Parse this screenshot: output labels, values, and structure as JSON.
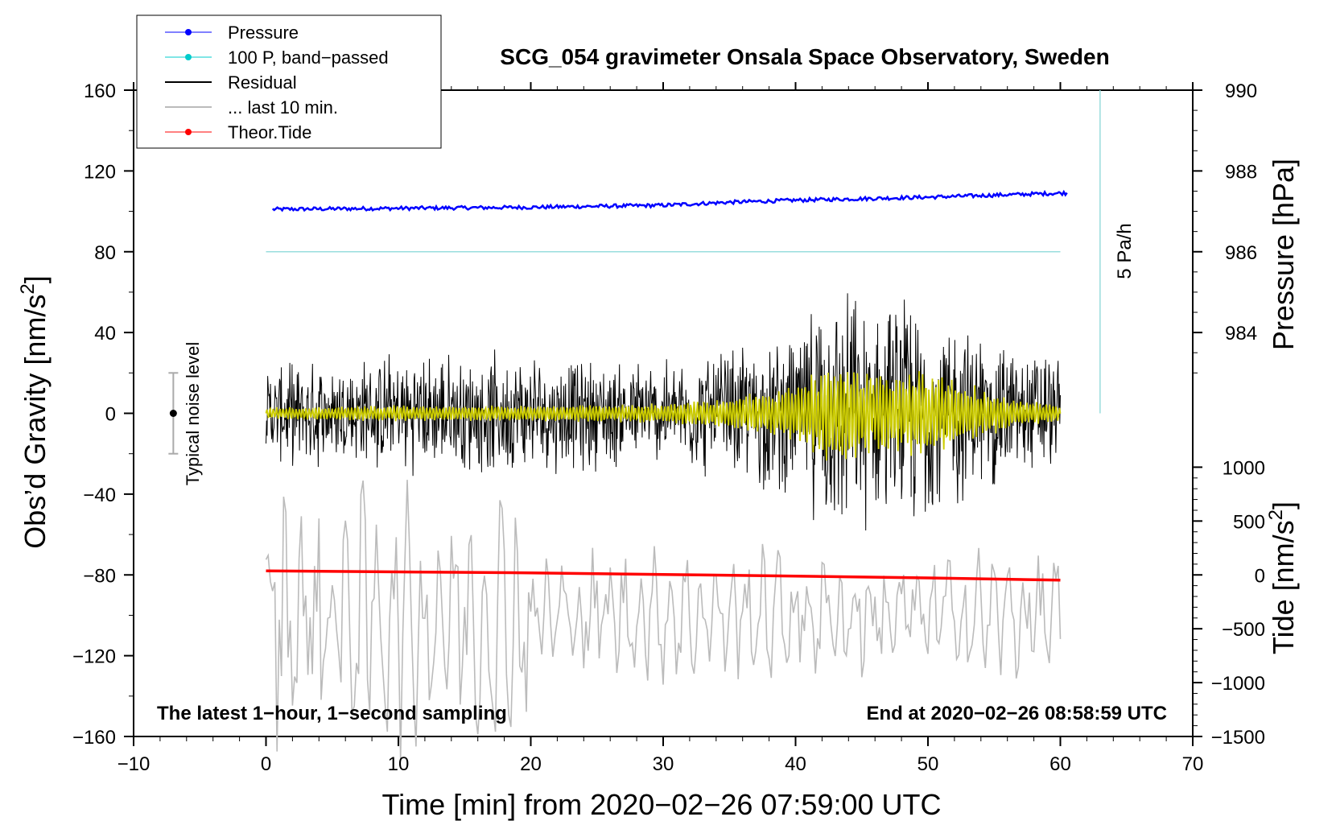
{
  "chart_data": {
    "type": "line",
    "title": "SCG_054 gravimeter Onsala Space Observatory, Sweden",
    "xlabel": "Time [min] from 2020−02−26 07:59:00 UTC",
    "ylabel": "Obs’d Gravity [nm/s",
    "ylabel_sup": "2",
    "ylabel_close": "]",
    "y2label": "Pressure [hPa]",
    "y3label": "Tide [nm/s",
    "y3label_sup": "2",
    "y3label_close": "]",
    "xlim": [
      -10,
      70
    ],
    "ylim": [
      -160,
      160
    ],
    "xticks": [
      -10,
      0,
      10,
      20,
      30,
      40,
      50,
      60,
      70
    ],
    "xtick_labels": [
      "−10",
      "0",
      "10",
      "20",
      "30",
      "40",
      "50",
      "60",
      "70"
    ],
    "yticks": [
      -160,
      -120,
      -80,
      -40,
      0,
      40,
      80,
      120,
      160
    ],
    "ytick_labels": [
      "−160",
      "−120",
      "−80",
      "−40",
      "0",
      "40",
      "80",
      "120",
      "160"
    ],
    "pressure_axis": {
      "ticks": [
        984,
        986,
        988,
        990
      ],
      "labels": [
        "984",
        "986",
        "988",
        "990"
      ],
      "gravity_at_984": 40,
      "gravity_per_hpa": 20
    },
    "tide_axis": {
      "ticks": [
        -1500,
        -1000,
        -500,
        0,
        500,
        1000
      ],
      "labels": [
        "−1500",
        "−1000",
        "−500",
        "0",
        "500",
        "1000"
      ],
      "gravity_at_0": -80,
      "gravity_per_unit": 0.05333
    },
    "legend": [
      {
        "label": "Pressure",
        "color": "#0000ff",
        "style": "line-dot"
      },
      {
        "label": "100 P, band−passed",
        "color": "#00cccc",
        "style": "line-dot"
      },
      {
        "label": "Residual",
        "color": "#000000",
        "style": "line"
      },
      {
        "label": "... last 10 min.",
        "color": "#bbbbbb",
        "style": "line"
      },
      {
        "label": "Theor.Tide",
        "color": "#ff0000",
        "style": "line-dot"
      }
    ],
    "series": [
      {
        "name": "Pressure",
        "color": "#0000ff",
        "x": [
          0,
          10,
          20,
          30,
          35,
          40,
          50,
          60
        ],
        "y": [
          101,
          101.5,
          102,
          103,
          104.5,
          105.5,
          107,
          109
        ]
      },
      {
        "name": "100 P, band-passed",
        "color": "#99dddd",
        "x": [
          0,
          60
        ],
        "y": [
          80,
          80
        ]
      },
      {
        "name": "Residual",
        "color": "#000000",
        "x_range": [
          0,
          60
        ],
        "center": 0,
        "envelope": {
          "x": [
            0,
            10,
            20,
            30,
            35,
            40,
            43,
            46,
            49,
            52,
            56,
            60
          ],
          "amp": [
            20,
            25,
            25,
            22,
            28,
            35,
            55,
            45,
            50,
            40,
            30,
            25
          ]
        }
      },
      {
        "name": "Smoothed",
        "color": "#cccc00",
        "x_range": [
          0,
          60
        ],
        "center": 0,
        "envelope": {
          "x": [
            0,
            10,
            20,
            30,
            35,
            40,
            43,
            46,
            49,
            52,
            56,
            60
          ],
          "amp": [
            3,
            4,
            4,
            5,
            8,
            15,
            28,
            20,
            22,
            18,
            8,
            4
          ]
        }
      },
      {
        "name": "... last 10 min.",
        "color": "#bbbbbb",
        "x_range": [
          0,
          60
        ],
        "center": -100,
        "amplitude": 30
      },
      {
        "name": "Theor.Tide",
        "color": "#ff0000",
        "x": [
          0,
          10,
          20,
          30,
          40,
          50,
          60
        ],
        "y": [
          -78,
          -78.5,
          -79,
          -79.8,
          -80.6,
          -81.5,
          -82.6
        ]
      }
    ],
    "annotations": {
      "vertical_line_label": "5 Pa/h",
      "noise_label": "Typical noise level",
      "noise_bar": {
        "x": -7,
        "y": 0,
        "err": 20
      },
      "vertical_line": {
        "x": 63,
        "y_from": 0,
        "y_to": 160
      }
    },
    "bottom_left_note": "The latest 1−hour, 1−second sampling",
    "bottom_right_note": "End at 2020−02−26 08:58:59 UTC"
  }
}
